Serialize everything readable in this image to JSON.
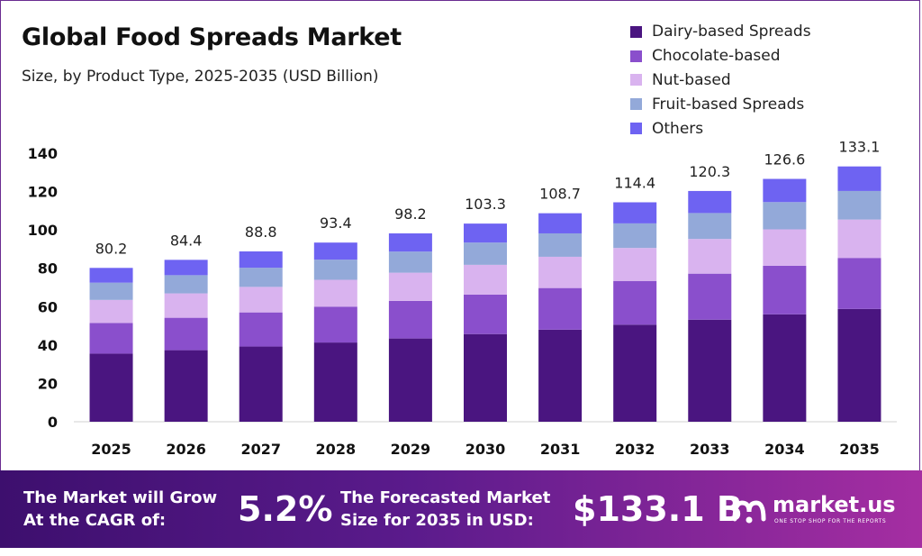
{
  "header": {
    "title": "Global Food Spreads Market",
    "subtitle": "Size, by Product Type, 2025-2035 (USD Billion)"
  },
  "colors": {
    "dairy": "#4a1580",
    "chocolate": "#8a4fcc",
    "nut": "#d9b3ef",
    "fruit": "#93a9d9",
    "others": "#6e63f2",
    "footer_start": "#3d0f6e",
    "footer_end": "#a52ea2"
  },
  "chart_data": {
    "type": "bar",
    "stacked": true,
    "title": "Global Food Spreads Market",
    "subtitle": "Size, by Product Type, 2025-2035 (USD Billion)",
    "categories": [
      "2025",
      "2026",
      "2027",
      "2028",
      "2029",
      "2030",
      "2031",
      "2032",
      "2033",
      "2034",
      "2035"
    ],
    "series": [
      {
        "name": "Dairy-based Spreads",
        "color": "#4a1580",
        "values": [
          35.5,
          37.3,
          39.2,
          41.3,
          43.4,
          45.7,
          48.0,
          50.6,
          53.2,
          56.0,
          58.8
        ]
      },
      {
        "name": "Chocolate-based",
        "color": "#8a4fcc",
        "values": [
          16.0,
          16.9,
          17.8,
          18.7,
          19.6,
          20.6,
          21.7,
          22.8,
          24.0,
          25.3,
          26.6
        ]
      },
      {
        "name": "Nut-based",
        "color": "#d9b3ef",
        "values": [
          12.0,
          12.7,
          13.3,
          14.0,
          14.7,
          15.5,
          16.3,
          17.2,
          18.1,
          19.0,
          20.0
        ]
      },
      {
        "name": "Fruit-based Spreads",
        "color": "#93a9d9",
        "values": [
          9.0,
          9.5,
          10.0,
          10.5,
          11.0,
          11.6,
          12.2,
          12.8,
          13.5,
          14.2,
          14.9
        ]
      },
      {
        "name": "Others",
        "color": "#6e63f2",
        "values": [
          7.7,
          8.0,
          8.5,
          8.9,
          9.5,
          9.9,
          10.5,
          11.0,
          11.5,
          12.1,
          12.8
        ]
      }
    ],
    "totals": [
      80.2,
      84.4,
      88.8,
      93.4,
      98.2,
      103.3,
      108.7,
      114.4,
      120.3,
      126.6,
      133.1
    ],
    "total_labels": [
      "80.2",
      "84.4",
      "88.8",
      "93.4",
      "98.2",
      "103.3",
      "108.7",
      "114.4",
      "120.3",
      "126.6",
      "133.1"
    ],
    "yticks": [
      "0",
      "20",
      "40",
      "60",
      "80",
      "100",
      "120",
      "140"
    ],
    "ylim": [
      0,
      140
    ],
    "grid": false,
    "legend": "top-right"
  },
  "footer": {
    "cagr_label_line1": "The Market will Grow",
    "cagr_label_line2": "At the CAGR of:",
    "cagr_value": "5.2%",
    "forecast_label_line1": "The Forecasted Market",
    "forecast_label_line2": "Size for 2035 in USD:",
    "forecast_value": "$133.1 B",
    "logo_name": "market.us",
    "logo_tagline": "ONE STOP SHOP FOR THE REPORTS",
    "logo_icon": "market-us-logo-icon"
  }
}
